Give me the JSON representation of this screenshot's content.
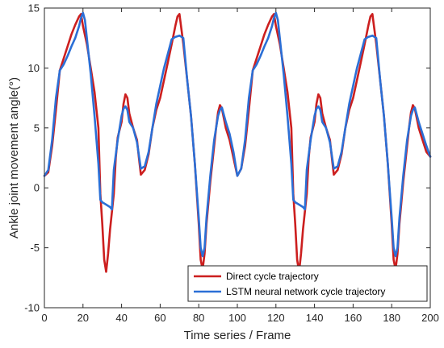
{
  "chart_data": {
    "type": "line",
    "xlabel": "Time series / Frame",
    "ylabel": "Ankle joint movement angle(°)",
    "xlim": [
      0,
      200
    ],
    "ylim": [
      -10,
      15
    ],
    "xticks": [
      0,
      20,
      40,
      60,
      80,
      100,
      120,
      140,
      160,
      180,
      200
    ],
    "yticks": [
      -10,
      -5,
      0,
      5,
      10,
      15
    ],
    "grid": false,
    "legend_position": "bottom-right",
    "series": [
      {
        "name": "Direct cycle trajectory",
        "color": "#cc1f1f",
        "points": [
          [
            0,
            1.0
          ],
          [
            2,
            1.3
          ],
          [
            4,
            3.5
          ],
          [
            6,
            6.5
          ],
          [
            8,
            9.8
          ],
          [
            10,
            10.8
          ],
          [
            12,
            11.8
          ],
          [
            14,
            12.8
          ],
          [
            16,
            13.6
          ],
          [
            18,
            14.3
          ],
          [
            19,
            14.5
          ],
          [
            20,
            13.5
          ],
          [
            22,
            12.0
          ],
          [
            24,
            10.0
          ],
          [
            26,
            8.0
          ],
          [
            28,
            5.0
          ],
          [
            29,
            -0.5
          ],
          [
            30,
            -3.0
          ],
          [
            31,
            -6.0
          ],
          [
            32,
            -7.0
          ],
          [
            33,
            -5.5
          ],
          [
            34,
            -3.5
          ],
          [
            36,
            -0.5
          ],
          [
            37,
            2.5
          ],
          [
            38,
            4.2
          ],
          [
            40,
            5.5
          ],
          [
            41,
            7.0
          ],
          [
            42,
            7.8
          ],
          [
            43,
            7.5
          ],
          [
            44,
            6.2
          ],
          [
            46,
            5.0
          ],
          [
            48,
            4.0
          ],
          [
            49,
            2.5
          ],
          [
            50,
            1.1
          ],
          [
            52,
            1.5
          ],
          [
            54,
            2.8
          ],
          [
            56,
            5.0
          ],
          [
            58,
            6.5
          ],
          [
            60,
            7.5
          ],
          [
            62,
            9.0
          ],
          [
            64,
            10.5
          ],
          [
            66,
            12.0
          ],
          [
            67,
            12.8
          ],
          [
            68,
            13.6
          ],
          [
            69,
            14.3
          ],
          [
            70,
            14.5
          ],
          [
            72,
            12.0
          ],
          [
            74,
            9.0
          ],
          [
            76,
            6.0
          ],
          [
            78,
            2.0
          ],
          [
            80,
            -3.0
          ],
          [
            81,
            -6.0
          ],
          [
            82,
            -6.8
          ],
          [
            83,
            -5.5
          ],
          [
            84,
            -3.0
          ],
          [
            86,
            0.5
          ],
          [
            88,
            3.5
          ],
          [
            89,
            5.0
          ],
          [
            90,
            6.3
          ],
          [
            91,
            6.9
          ],
          [
            92,
            6.6
          ],
          [
            94,
            5.0
          ],
          [
            96,
            4.0
          ],
          [
            98,
            2.5
          ],
          [
            100,
            1.0
          ],
          [
            102,
            1.6
          ],
          [
            104,
            3.5
          ],
          [
            106,
            6.5
          ],
          [
            108,
            9.8
          ],
          [
            110,
            10.8
          ],
          [
            112,
            11.8
          ],
          [
            114,
            12.8
          ],
          [
            116,
            13.6
          ],
          [
            118,
            14.3
          ],
          [
            119,
            14.5
          ],
          [
            120,
            13.5
          ],
          [
            122,
            12.0
          ],
          [
            124,
            10.0
          ],
          [
            126,
            8.0
          ],
          [
            128,
            5.0
          ],
          [
            129,
            -0.5
          ],
          [
            130,
            -3.0
          ],
          [
            131,
            -6.0
          ],
          [
            132,
            -7.0
          ],
          [
            133,
            -5.5
          ],
          [
            134,
            -3.5
          ],
          [
            136,
            -0.5
          ],
          [
            137,
            2.5
          ],
          [
            138,
            4.2
          ],
          [
            140,
            5.5
          ],
          [
            141,
            7.0
          ],
          [
            142,
            7.8
          ],
          [
            143,
            7.5
          ],
          [
            144,
            6.2
          ],
          [
            146,
            5.0
          ],
          [
            148,
            4.0
          ],
          [
            149,
            2.5
          ],
          [
            150,
            1.1
          ],
          [
            152,
            1.5
          ],
          [
            154,
            2.8
          ],
          [
            156,
            5.0
          ],
          [
            158,
            6.5
          ],
          [
            160,
            7.5
          ],
          [
            162,
            9.0
          ],
          [
            164,
            10.5
          ],
          [
            166,
            12.0
          ],
          [
            167,
            12.8
          ],
          [
            168,
            13.6
          ],
          [
            169,
            14.3
          ],
          [
            170,
            14.5
          ],
          [
            172,
            12.0
          ],
          [
            174,
            9.0
          ],
          [
            176,
            6.0
          ],
          [
            178,
            2.0
          ],
          [
            180,
            -3.0
          ],
          [
            181,
            -6.0
          ],
          [
            182,
            -6.8
          ],
          [
            183,
            -5.5
          ],
          [
            184,
            -3.0
          ],
          [
            186,
            0.5
          ],
          [
            188,
            3.5
          ],
          [
            189,
            5.0
          ],
          [
            190,
            6.3
          ],
          [
            191,
            6.9
          ],
          [
            192,
            6.6
          ],
          [
            194,
            5.0
          ],
          [
            196,
            4.0
          ],
          [
            198,
            3.0
          ],
          [
            200,
            2.6
          ]
        ]
      },
      {
        "name": "LSTM neural network cycle trajectory",
        "color": "#2b6fd6",
        "points": [
          [
            0,
            1.0
          ],
          [
            2,
            1.5
          ],
          [
            4,
            4.0
          ],
          [
            6,
            7.5
          ],
          [
            8,
            9.8
          ],
          [
            10,
            10.3
          ],
          [
            12,
            11.0
          ],
          [
            14,
            11.8
          ],
          [
            16,
            12.5
          ],
          [
            18,
            13.5
          ],
          [
            19,
            14.2
          ],
          [
            20,
            14.6
          ],
          [
            21,
            14.0
          ],
          [
            22,
            12.5
          ],
          [
            24,
            9.5
          ],
          [
            26,
            6.0
          ],
          [
            28,
            2.0
          ],
          [
            29,
            -1.0
          ],
          [
            30,
            -1.2
          ],
          [
            32,
            -1.4
          ],
          [
            34,
            -1.6
          ],
          [
            35,
            -1.8
          ],
          [
            36,
            1.5
          ],
          [
            38,
            4.0
          ],
          [
            40,
            6.0
          ],
          [
            41,
            6.6
          ],
          [
            42,
            6.8
          ],
          [
            43,
            6.5
          ],
          [
            44,
            5.5
          ],
          [
            46,
            5.0
          ],
          [
            48,
            3.8
          ],
          [
            50,
            1.6
          ],
          [
            52,
            1.8
          ],
          [
            54,
            3.0
          ],
          [
            56,
            5.0
          ],
          [
            58,
            7.0
          ],
          [
            60,
            8.5
          ],
          [
            62,
            10.0
          ],
          [
            64,
            11.2
          ],
          [
            66,
            12.4
          ],
          [
            68,
            12.6
          ],
          [
            70,
            12.7
          ],
          [
            72,
            12.5
          ],
          [
            74,
            9.0
          ],
          [
            76,
            6.0
          ],
          [
            78,
            2.0
          ],
          [
            80,
            -2.5
          ],
          [
            81,
            -5.0
          ],
          [
            82,
            -5.7
          ],
          [
            83,
            -5.0
          ],
          [
            84,
            -2.5
          ],
          [
            86,
            1.0
          ],
          [
            88,
            4.0
          ],
          [
            90,
            6.0
          ],
          [
            91,
            6.5
          ],
          [
            92,
            6.7
          ],
          [
            94,
            5.5
          ],
          [
            96,
            4.5
          ],
          [
            98,
            3.0
          ],
          [
            100,
            1.0
          ],
          [
            102,
            1.6
          ],
          [
            104,
            4.0
          ],
          [
            106,
            7.5
          ],
          [
            108,
            9.8
          ],
          [
            110,
            10.3
          ],
          [
            112,
            11.0
          ],
          [
            114,
            11.8
          ],
          [
            116,
            12.5
          ],
          [
            118,
            13.5
          ],
          [
            119,
            14.2
          ],
          [
            120,
            14.6
          ],
          [
            121,
            14.0
          ],
          [
            122,
            12.5
          ],
          [
            124,
            9.5
          ],
          [
            126,
            6.0
          ],
          [
            128,
            2.0
          ],
          [
            129,
            -1.0
          ],
          [
            130,
            -1.2
          ],
          [
            132,
            -1.4
          ],
          [
            134,
            -1.6
          ],
          [
            135,
            -1.8
          ],
          [
            136,
            1.5
          ],
          [
            138,
            4.0
          ],
          [
            140,
            6.0
          ],
          [
            141,
            6.6
          ],
          [
            142,
            6.8
          ],
          [
            143,
            6.5
          ],
          [
            144,
            5.5
          ],
          [
            146,
            5.0
          ],
          [
            148,
            3.8
          ],
          [
            150,
            1.6
          ],
          [
            152,
            1.8
          ],
          [
            154,
            3.0
          ],
          [
            156,
            5.0
          ],
          [
            158,
            7.0
          ],
          [
            160,
            8.5
          ],
          [
            162,
            10.0
          ],
          [
            164,
            11.2
          ],
          [
            166,
            12.4
          ],
          [
            168,
            12.6
          ],
          [
            170,
            12.7
          ],
          [
            172,
            12.5
          ],
          [
            174,
            9.0
          ],
          [
            176,
            6.0
          ],
          [
            178,
            2.0
          ],
          [
            180,
            -2.5
          ],
          [
            181,
            -5.0
          ],
          [
            182,
            -5.7
          ],
          [
            183,
            -5.0
          ],
          [
            184,
            -2.5
          ],
          [
            186,
            1.0
          ],
          [
            188,
            4.0
          ],
          [
            190,
            6.0
          ],
          [
            191,
            6.5
          ],
          [
            192,
            6.7
          ],
          [
            194,
            5.5
          ],
          [
            196,
            4.5
          ],
          [
            198,
            3.5
          ],
          [
            200,
            2.6
          ]
        ]
      }
    ]
  }
}
